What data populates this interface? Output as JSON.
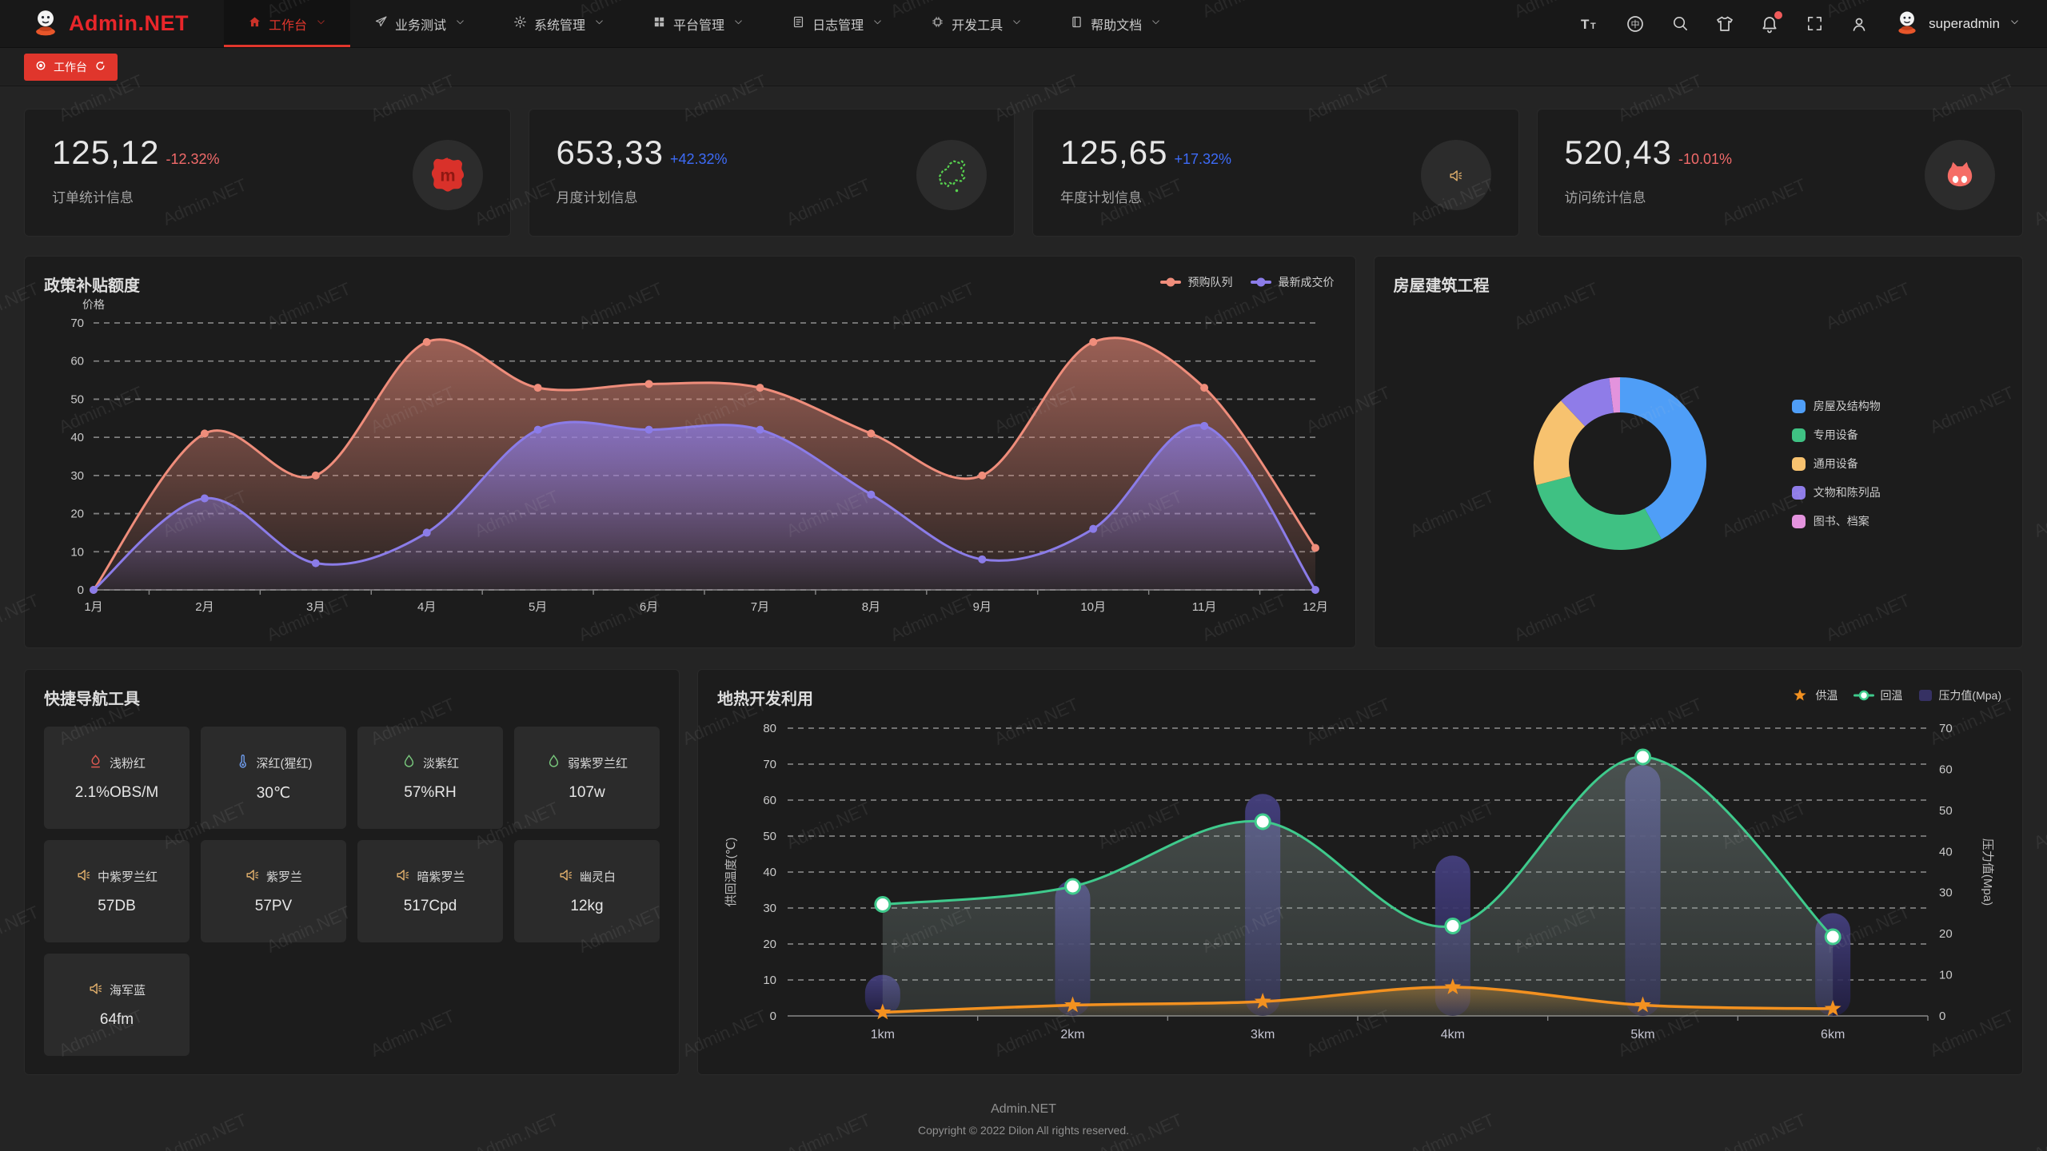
{
  "brand": {
    "name": "Admin.NET"
  },
  "nav": {
    "items": [
      {
        "label": "工作台",
        "icon": "home-icon",
        "active": true
      },
      {
        "label": "业务测试",
        "icon": "send-icon",
        "active": false
      },
      {
        "label": "系统管理",
        "icon": "gear-icon",
        "active": false
      },
      {
        "label": "平台管理",
        "icon": "grid-icon",
        "active": false
      },
      {
        "label": "日志管理",
        "icon": "document-icon",
        "active": false
      },
      {
        "label": "开发工具",
        "icon": "chip-icon",
        "active": false
      },
      {
        "label": "帮助文档",
        "icon": "book-icon",
        "active": false
      }
    ]
  },
  "header_actions": {
    "icons": [
      {
        "name": "font-size-icon",
        "badge": false
      },
      {
        "name": "language-icon",
        "badge": false
      },
      {
        "name": "search-icon",
        "badge": false
      },
      {
        "name": "theme-icon",
        "badge": false
      },
      {
        "name": "notification-icon",
        "badge": true
      },
      {
        "name": "fullscreen-icon",
        "badge": false
      },
      {
        "name": "contact-icon",
        "badge": false
      }
    ],
    "user_name": "superadmin"
  },
  "tabs": [
    {
      "label": "工作台"
    }
  ],
  "stat_cards": [
    {
      "value": "125,12",
      "delta": "-12.32%",
      "direction": "down",
      "label": "订单统计信息",
      "icon": "meetup-icon"
    },
    {
      "value": "653,33",
      "delta": "+42.32%",
      "direction": "up",
      "label": "月度计划信息",
      "icon": "china-map-icon"
    },
    {
      "value": "125,65",
      "delta": "+17.32%",
      "direction": "up",
      "label": "年度计划信息",
      "icon": "speaker-icon"
    },
    {
      "value": "520,43",
      "delta": "-10.01%",
      "direction": "down",
      "label": "访问统计信息",
      "icon": "cat-icon"
    }
  ],
  "colors": {
    "accent_red": "#e0362c",
    "delta_up": "#3d6bf7",
    "delta_down": "#f16a6a",
    "area_series1": "#ef8d7b",
    "area_series2": "#8b7ce8",
    "geo_orange": "#f39120",
    "geo_green": "#3fca8c",
    "geo_bar": "#363163",
    "donut_palette": [
      "#4f9ef7",
      "#3fc183",
      "#f7c26f",
      "#8f7ce8",
      "#e393dd"
    ]
  },
  "quick_nav": {
    "title": "快捷导航工具",
    "tiles": [
      {
        "name": "浅粉红",
        "value": "2.1%OBS/M",
        "icon": "fire-icon"
      },
      {
        "name": "深红(猩红)",
        "value": "30℃",
        "icon": "thermometer-icon"
      },
      {
        "name": "淡紫红",
        "value": "57%RH",
        "icon": "drop-icon"
      },
      {
        "name": "弱紫罗兰红",
        "value": "107w",
        "icon": "drop-icon"
      },
      {
        "name": "中紫罗兰红",
        "value": "57DB",
        "icon": "speaker-icon"
      },
      {
        "name": "紫罗兰",
        "value": "57PV",
        "icon": "speaker-icon"
      },
      {
        "name": "暗紫罗兰",
        "value": "517Cpd",
        "icon": "speaker-icon"
      },
      {
        "name": "幽灵白",
        "value": "12kg",
        "icon": "speaker-icon"
      },
      {
        "name": "海军蓝",
        "value": "64fm",
        "icon": "speaker-icon"
      }
    ]
  },
  "footer": {
    "line1": "Admin.NET",
    "line2": "Copyright © 2022 Dilon All rights reserved."
  },
  "watermark": {
    "text": "Admin.NET"
  },
  "chart_data": [
    {
      "type": "area",
      "title": "政策补贴额度",
      "ylabel": "价格",
      "ylim": [
        0,
        70
      ],
      "ystep": 10,
      "grid": true,
      "legend_position": "top-right",
      "categories": [
        "1月",
        "2月",
        "3月",
        "4月",
        "5月",
        "6月",
        "7月",
        "8月",
        "9月",
        "10月",
        "11月",
        "12月"
      ],
      "series": [
        {
          "name": "预购队列",
          "color": "#ef8d7b",
          "values": [
            0,
            41,
            30,
            65,
            53,
            54,
            53,
            41,
            30,
            65,
            53,
            11
          ]
        },
        {
          "name": "最新成交价",
          "color": "#8b7ce8",
          "values": [
            0,
            24,
            7,
            15,
            42,
            42,
            42,
            25,
            8,
            16,
            43,
            0
          ]
        }
      ]
    },
    {
      "type": "pie",
      "title": "房屋建筑工程",
      "legend_position": "right",
      "items": [
        {
          "label": "房屋及结构物",
          "value": 42,
          "color": "#4f9ef7"
        },
        {
          "label": "专用设备",
          "value": 29,
          "color": "#3fc183"
        },
        {
          "label": "通用设备",
          "value": 17,
          "color": "#f7c26f"
        },
        {
          "label": "文物和陈列品",
          "value": 10,
          "color": "#8f7ce8"
        },
        {
          "label": "图书、档案",
          "value": 2,
          "color": "#e393dd"
        }
      ]
    },
    {
      "type": "line-bar-combo",
      "title": "地热开发利用",
      "categories": [
        "1km",
        "2km",
        "3km",
        "4km",
        "5km",
        "6km"
      ],
      "left_axis": {
        "label": "供回温度(℃)",
        "lim": [
          0,
          80
        ],
        "step": 10
      },
      "right_axis": {
        "label": "压力值(Mpa)",
        "lim": [
          0,
          70
        ],
        "step": 10
      },
      "series": [
        {
          "name": "供温",
          "type": "line",
          "marker": "star",
          "axis": "left",
          "color": "#f39120",
          "values": [
            1,
            3,
            4,
            8,
            3,
            2
          ]
        },
        {
          "name": "回温",
          "type": "line",
          "marker": "ring",
          "axis": "left",
          "color": "#3fca8c",
          "values": [
            31,
            36,
            54,
            25,
            72,
            22
          ]
        },
        {
          "name": "压力值(Mpa)",
          "type": "bar",
          "marker": "square",
          "axis": "right",
          "color": "#363163",
          "values": [
            10,
            33,
            54,
            39,
            61,
            25
          ]
        }
      ]
    }
  ]
}
